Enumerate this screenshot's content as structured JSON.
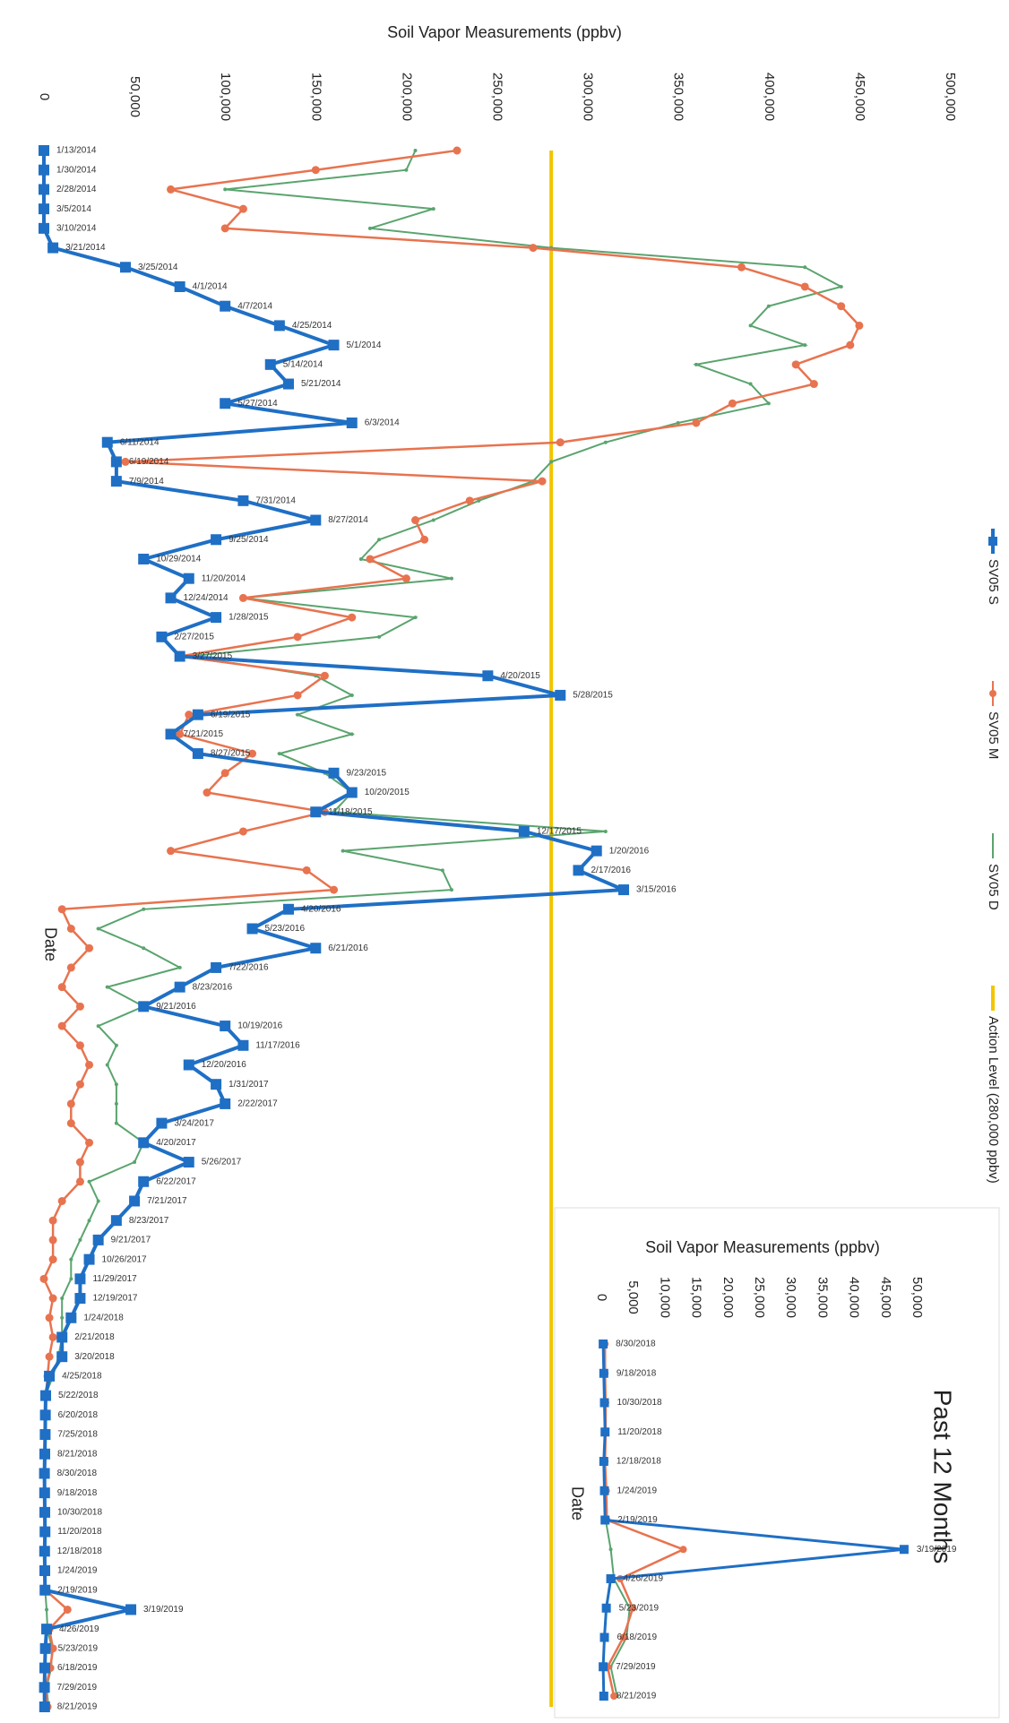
{
  "chart_data": [
    {
      "type": "line",
      "title": "Soil Vapor Measurements (ppbv)",
      "x_label": "Date",
      "categories": [
        "1/13/2014",
        "1/30/2014",
        "2/28/2014",
        "3/5/2014",
        "3/10/2014",
        "3/21/2014",
        "3/25/2014",
        "4/1/2014",
        "4/7/2014",
        "4/25/2014",
        "5/1/2014",
        "5/14/2014",
        "5/21/2014",
        "5/27/2014",
        "6/3/2014",
        "6/11/2014",
        "6/19/2014",
        "7/9/2014",
        "7/31/2014",
        "8/27/2014",
        "9/25/2014",
        "10/29/2014",
        "11/20/2014",
        "12/24/2014",
        "1/28/2015",
        "2/27/2015",
        "3/27/2015",
        "4/20/2015",
        "5/28/2015",
        "6/19/2015",
        "7/21/2015",
        "8/27/2015",
        "9/23/2015",
        "10/20/2015",
        "11/18/2015",
        "12/17/2015",
        "1/20/2016",
        "2/17/2016",
        "3/15/2016",
        "4/20/2016",
        "5/23/2016",
        "6/21/2016",
        "7/22/2016",
        "8/23/2016",
        "9/21/2016",
        "10/19/2016",
        "11/17/2016",
        "12/20/2016",
        "1/31/2017",
        "2/22/2017",
        "3/24/2017",
        "4/20/2017",
        "5/26/2017",
        "6/22/2017",
        "7/21/2017",
        "8/23/2017",
        "9/21/2017",
        "10/26/2017",
        "11/29/2017",
        "12/19/2017",
        "1/24/2018",
        "2/21/2018",
        "3/20/2018",
        "4/25/2018",
        "5/22/2018",
        "6/20/2018",
        "7/25/2018",
        "8/21/2018",
        "8/30/2018",
        "9/18/2018",
        "10/30/2018",
        "11/20/2018",
        "12/18/2018",
        "1/24/2019",
        "2/19/2019",
        "3/19/2019",
        "4/26/2019",
        "5/23/2019",
        "6/18/2019",
        "7/29/2019",
        "8/21/2019"
      ],
      "series": [
        {
          "name": "SV05 S",
          "color": "#1f6fc5",
          "values": [
            0,
            0,
            0,
            0,
            0,
            5000,
            45000,
            75000,
            100000,
            130000,
            160000,
            125000,
            135000,
            100000,
            170000,
            35000,
            40000,
            40000,
            110000,
            150000,
            95000,
            55000,
            80000,
            70000,
            95000,
            65000,
            75000,
            245000,
            285000,
            85000,
            70000,
            85000,
            160000,
            170000,
            150000,
            265000,
            305000,
            295000,
            320000,
            135000,
            115000,
            150000,
            95000,
            75000,
            55000,
            100000,
            110000,
            80000,
            95000,
            100000,
            65000,
            55000,
            80000,
            55000,
            50000,
            40000,
            30000,
            25000,
            20000,
            20000,
            15000,
            10000,
            10000,
            3000,
            1000,
            800,
            700,
            500,
            300,
            400,
            500,
            600,
            400,
            500,
            600,
            48000,
            1500,
            800,
            500,
            300,
            400
          ]
        },
        {
          "name": "SV05 M",
          "color": "#e8734f",
          "values": [
            228000,
            150000,
            70000,
            110000,
            100000,
            270000,
            385000,
            420000,
            440000,
            450000,
            445000,
            415000,
            425000,
            380000,
            360000,
            285000,
            45000,
            275000,
            235000,
            205000,
            210000,
            180000,
            200000,
            110000,
            170000,
            140000,
            75000,
            155000,
            140000,
            80000,
            75000,
            115000,
            100000,
            90000,
            155000,
            110000,
            70000,
            145000,
            160000,
            10000,
            15000,
            25000,
            15000,
            10000,
            20000,
            10000,
            20000,
            25000,
            20000,
            15000,
            15000,
            25000,
            20000,
            20000,
            10000,
            5000,
            5000,
            5000,
            0,
            5000,
            3000,
            5000,
            3000,
            2000,
            1200,
            1000,
            900,
            800,
            600,
            600,
            700,
            700,
            600,
            800,
            900,
            13000,
            3000,
            5000,
            3500,
            1000,
            2000
          ]
        },
        {
          "name": "SV05 D",
          "color": "#5aa46e",
          "values": [
            205000,
            200000,
            100000,
            215000,
            180000,
            280000,
            420000,
            440000,
            400000,
            390000,
            420000,
            360000,
            390000,
            400000,
            350000,
            310000,
            280000,
            270000,
            240000,
            215000,
            185000,
            175000,
            225000,
            110000,
            205000,
            185000,
            80000,
            150000,
            170000,
            140000,
            170000,
            130000,
            155000,
            170000,
            160000,
            310000,
            165000,
            220000,
            225000,
            55000,
            30000,
            55000,
            75000,
            35000,
            55000,
            30000,
            40000,
            35000,
            40000,
            40000,
            40000,
            55000,
            50000,
            25000,
            30000,
            25000,
            20000,
            15000,
            15000,
            10000,
            10000,
            10000,
            8000,
            5000,
            800,
            700,
            600,
            500,
            400,
            500,
            500,
            600,
            500,
            600,
            700,
            1500,
            2000,
            4500,
            4000,
            1500,
            2500
          ]
        }
      ],
      "reference_lines": [
        {
          "name": "Action Level (280,000 ppbv)",
          "value": 280000,
          "color": "#f2c500"
        }
      ],
      "ylim": [
        0,
        500000
      ],
      "yticks": [
        0,
        {
          "value": 50000,
          "label": "50,000"
        },
        {
          "value": 100000,
          "label": "100,000"
        },
        {
          "value": 150000,
          "label": "150,000"
        },
        {
          "value": 200000,
          "label": "200,000"
        },
        {
          "value": 250000,
          "label": "250,000"
        },
        {
          "value": 300000,
          "label": "300,000"
        },
        {
          "value": 350000,
          "label": "350,000"
        },
        {
          "value": 400000,
          "label": "400,000"
        },
        {
          "value": 450000,
          "label": "450,000"
        },
        {
          "value": 500000,
          "label": "500,000"
        }
      ],
      "grid": false,
      "legend": "right"
    },
    {
      "type": "line",
      "title": "Soil Vapor Measurements (ppbv)",
      "subtitle": "Past 12 Months",
      "x_label": "Date",
      "categories": [
        "8/30/2018",
        "9/18/2018",
        "10/30/2018",
        "11/20/2018",
        "12/18/2018",
        "1/24/2019",
        "2/19/2019",
        "3/19/2019",
        "4/26/2019",
        "5/23/2019",
        "6/18/2019",
        "7/29/2019",
        "8/21/2019"
      ],
      "series": [
        {
          "name": "SV05 S",
          "color": "#1f6fc5",
          "values": [
            300,
            400,
            500,
            600,
            400,
            500,
            600,
            48000,
            1500,
            800,
            500,
            300,
            400
          ]
        },
        {
          "name": "SV05 M",
          "color": "#e8734f",
          "values": [
            600,
            600,
            700,
            700,
            600,
            800,
            900,
            13000,
            3000,
            5000,
            3500,
            1000,
            2000
          ]
        },
        {
          "name": "SV05 D",
          "color": "#5aa46e",
          "values": [
            400,
            500,
            500,
            600,
            500,
            600,
            700,
            1500,
            2000,
            4500,
            4000,
            1500,
            2500
          ]
        }
      ],
      "ylim": [
        0,
        50000
      ],
      "yticks": [
        0,
        {
          "value": 5000,
          "label": "5,000"
        },
        {
          "value": 10000,
          "label": "10,000"
        },
        {
          "value": 15000,
          "label": "15,000"
        },
        {
          "value": 20000,
          "label": "20,000"
        },
        {
          "value": 25000,
          "label": "25,000"
        },
        {
          "value": 30000,
          "label": "30,000"
        },
        {
          "value": 35000,
          "label": "35,000"
        },
        {
          "value": 40000,
          "label": "40,000"
        },
        {
          "value": 45000,
          "label": "45,000"
        },
        {
          "value": 50000,
          "label": "50,000"
        }
      ],
      "grid": false
    }
  ]
}
